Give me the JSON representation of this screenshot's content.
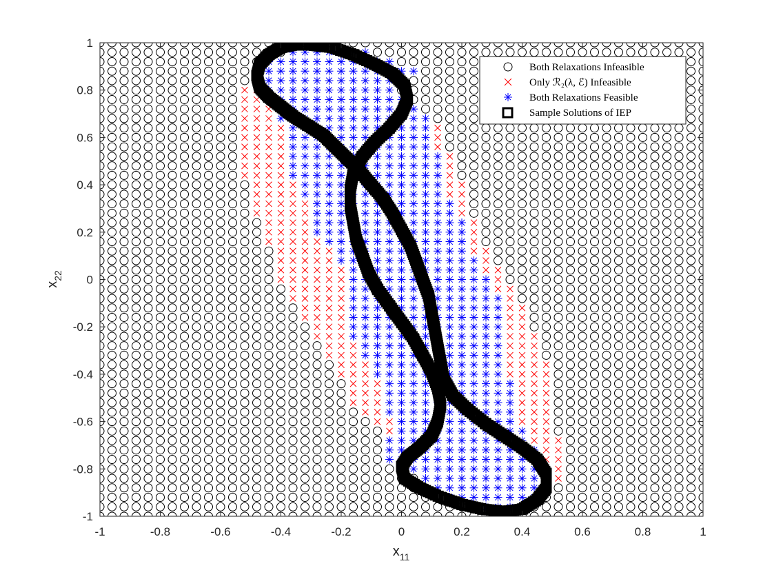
{
  "chart_data": {
    "type": "scatter",
    "title": "",
    "xlabel": {
      "base": "x",
      "sub": "11"
    },
    "ylabel": {
      "base": "x",
      "sub": "22"
    },
    "xlim": [
      -1,
      1
    ],
    "ylim": [
      -1,
      1
    ],
    "xticks": [
      "-1",
      "-0.8",
      "-0.6",
      "-0.4",
      "-0.2",
      "0",
      "0.2",
      "0.4",
      "0.6",
      "0.8",
      "1"
    ],
    "yticks": [
      "-1",
      "-0.8",
      "-0.6",
      "-0.4",
      "-0.2",
      "0",
      "0.2",
      "0.4",
      "0.6",
      "0.8",
      "1"
    ],
    "grid": false,
    "grid_spacing": 0.04,
    "legend_position": "top-right",
    "series": [
      {
        "name": "Both Relaxations Infeasible",
        "marker": "circle",
        "color": "#000000"
      },
      {
        "name": "Only ℛ₂(λ, ℰ) Infeasible",
        "marker": "x",
        "color": "#ff0000"
      },
      {
        "name": "Both Relaxations Feasible",
        "marker": "asterisk",
        "color": "#0000ff"
      },
      {
        "name": "Sample Solutions of IEP",
        "marker": "square",
        "color": "#000000"
      }
    ],
    "feasible_x11_range_by_x22": [
      [
        0.96,
        -0.36,
        -0.12
      ],
      [
        0.92,
        -0.44,
        -0.04
      ],
      [
        0.88,
        -0.44,
        0.04
      ],
      [
        0.84,
        -0.44,
        0.0
      ],
      [
        0.8,
        -0.44,
        -0.04
      ],
      [
        0.76,
        -0.44,
        0.0
      ],
      [
        0.72,
        -0.4,
        0.04
      ],
      [
        0.68,
        -0.4,
        0.08
      ],
      [
        0.64,
        -0.36,
        0.08
      ],
      [
        0.6,
        -0.36,
        0.08
      ],
      [
        0.56,
        -0.36,
        0.08
      ],
      [
        0.52,
        -0.36,
        0.12
      ],
      [
        0.48,
        -0.36,
        0.12
      ],
      [
        0.44,
        -0.36,
        0.12
      ],
      [
        0.4,
        -0.32,
        0.12
      ],
      [
        0.36,
        -0.32,
        0.12
      ],
      [
        0.32,
        -0.28,
        0.16
      ],
      [
        0.28,
        -0.28,
        0.16
      ],
      [
        0.24,
        -0.28,
        0.2
      ],
      [
        0.2,
        -0.28,
        0.2
      ],
      [
        0.16,
        -0.24,
        0.2
      ],
      [
        0.12,
        -0.2,
        0.2
      ],
      [
        0.08,
        -0.2,
        0.24
      ],
      [
        0.04,
        -0.16,
        0.24
      ],
      [
        0.0,
        -0.16,
        0.28
      ],
      [
        -0.04,
        -0.16,
        0.28
      ],
      [
        -0.08,
        -0.16,
        0.32
      ],
      [
        -0.12,
        -0.16,
        0.32
      ],
      [
        -0.16,
        -0.16,
        0.32
      ],
      [
        -0.2,
        -0.16,
        0.32
      ],
      [
        -0.24,
        -0.16,
        0.32
      ],
      [
        -0.28,
        -0.12,
        0.32
      ],
      [
        -0.32,
        -0.12,
        0.32
      ],
      [
        -0.36,
        -0.08,
        0.32
      ],
      [
        -0.4,
        -0.08,
        0.32
      ],
      [
        -0.44,
        -0.04,
        0.36
      ],
      [
        -0.48,
        -0.04,
        0.36
      ],
      [
        -0.52,
        -0.04,
        0.36
      ],
      [
        -0.56,
        -0.04,
        0.36
      ],
      [
        -0.6,
        0.0,
        0.36
      ],
      [
        -0.64,
        0.0,
        0.4
      ],
      [
        -0.68,
        -0.04,
        0.4
      ],
      [
        -0.72,
        -0.04,
        0.44
      ],
      [
        -0.76,
        -0.04,
        0.44
      ],
      [
        -0.8,
        0.0,
        0.44
      ],
      [
        -0.84,
        0.08,
        0.44
      ],
      [
        -0.88,
        0.12,
        0.44
      ],
      [
        -0.92,
        0.16,
        0.44
      ],
      [
        -0.96,
        0.24,
        0.4
      ]
    ],
    "red_x11_range_by_x22": [
      [
        0.8,
        -0.52,
        -0.48
      ],
      [
        0.76,
        -0.52,
        -0.48
      ],
      [
        0.72,
        -0.52,
        -0.44
      ],
      [
        0.68,
        -0.52,
        -0.44
      ],
      [
        0.64,
        -0.52,
        -0.4
      ],
      [
        0.6,
        -0.52,
        -0.4
      ],
      [
        0.56,
        -0.52,
        -0.4
      ],
      [
        0.52,
        -0.52,
        -0.4
      ],
      [
        0.48,
        -0.52,
        -0.4
      ],
      [
        0.44,
        -0.52,
        -0.4
      ],
      [
        0.4,
        -0.48,
        -0.36
      ],
      [
        0.36,
        -0.48,
        -0.36
      ],
      [
        0.32,
        -0.48,
        -0.32
      ],
      [
        0.28,
        -0.48,
        -0.32
      ],
      [
        0.24,
        -0.44,
        -0.32
      ],
      [
        0.2,
        -0.44,
        -0.32
      ],
      [
        0.16,
        -0.44,
        -0.28
      ],
      [
        0.12,
        -0.4,
        -0.24
      ],
      [
        0.08,
        -0.4,
        -0.24
      ],
      [
        0.04,
        -0.4,
        -0.2
      ],
      [
        0.0,
        -0.4,
        -0.2
      ],
      [
        -0.04,
        -0.36,
        -0.2
      ],
      [
        -0.08,
        -0.36,
        -0.2
      ],
      [
        -0.12,
        -0.32,
        -0.2
      ],
      [
        -0.16,
        -0.32,
        -0.2
      ],
      [
        -0.2,
        -0.28,
        -0.2
      ],
      [
        -0.24,
        -0.28,
        -0.2
      ],
      [
        -0.28,
        -0.24,
        -0.16
      ],
      [
        -0.32,
        -0.24,
        -0.16
      ],
      [
        -0.36,
        -0.2,
        -0.12
      ],
      [
        -0.4,
        -0.2,
        -0.12
      ],
      [
        -0.44,
        -0.16,
        -0.08
      ],
      [
        -0.48,
        -0.16,
        -0.08
      ],
      [
        -0.52,
        -0.16,
        -0.08
      ],
      [
        -0.56,
        -0.12,
        -0.08
      ],
      [
        -0.6,
        -0.08,
        -0.04
      ],
      [
        -0.64,
        -0.04,
        -0.04
      ]
    ],
    "red_right_x11_range_by_x22": [
      [
        0.68,
        0.08,
        0.08
      ],
      [
        0.64,
        0.12,
        0.12
      ],
      [
        0.6,
        0.12,
        0.12
      ],
      [
        0.56,
        0.12,
        0.12
      ],
      [
        0.52,
        0.16,
        0.16
      ],
      [
        0.48,
        0.16,
        0.16
      ],
      [
        0.44,
        0.16,
        0.16
      ],
      [
        0.4,
        0.16,
        0.2
      ],
      [
        0.36,
        0.16,
        0.2
      ],
      [
        0.32,
        0.2,
        0.2
      ],
      [
        0.28,
        0.2,
        0.2
      ],
      [
        0.24,
        0.24,
        0.24
      ],
      [
        0.2,
        0.24,
        0.24
      ],
      [
        0.16,
        0.24,
        0.24
      ],
      [
        0.12,
        0.24,
        0.28
      ],
      [
        0.08,
        0.28,
        0.28
      ],
      [
        0.04,
        0.28,
        0.32
      ],
      [
        0.0,
        0.32,
        0.32
      ],
      [
        -0.04,
        0.32,
        0.36
      ],
      [
        -0.08,
        0.36,
        0.36
      ],
      [
        -0.12,
        0.36,
        0.4
      ],
      [
        -0.16,
        0.36,
        0.4
      ],
      [
        -0.2,
        0.36,
        0.4
      ],
      [
        -0.24,
        0.36,
        0.44
      ],
      [
        -0.28,
        0.36,
        0.44
      ],
      [
        -0.32,
        0.36,
        0.44
      ],
      [
        -0.36,
        0.36,
        0.48
      ],
      [
        -0.4,
        0.36,
        0.48
      ],
      [
        -0.44,
        0.4,
        0.48
      ],
      [
        -0.48,
        0.4,
        0.48
      ],
      [
        -0.52,
        0.4,
        0.48
      ],
      [
        -0.56,
        0.4,
        0.48
      ],
      [
        -0.6,
        0.4,
        0.48
      ],
      [
        -0.64,
        0.44,
        0.48
      ],
      [
        -0.68,
        0.44,
        0.52
      ],
      [
        -0.72,
        0.48,
        0.52
      ],
      [
        -0.76,
        0.48,
        0.52
      ],
      [
        -0.8,
        0.48,
        0.52
      ],
      [
        -0.84,
        0.48,
        0.52
      ]
    ],
    "curve_points": [
      [
        -0.36,
        0.99
      ],
      [
        -0.4,
        0.98
      ],
      [
        -0.44,
        0.95
      ],
      [
        -0.47,
        0.91
      ],
      [
        -0.48,
        0.86
      ],
      [
        -0.47,
        0.81
      ],
      [
        -0.44,
        0.77
      ],
      [
        -0.4,
        0.73
      ],
      [
        -0.36,
        0.69
      ],
      [
        -0.31,
        0.65
      ],
      [
        -0.26,
        0.61
      ],
      [
        -0.22,
        0.56
      ],
      [
        -0.18,
        0.51
      ],
      [
        -0.14,
        0.46
      ],
      [
        -0.1,
        0.4
      ],
      [
        -0.06,
        0.34
      ],
      [
        -0.03,
        0.28
      ],
      [
        0.0,
        0.21
      ],
      [
        0.03,
        0.14
      ],
      [
        0.05,
        0.07
      ],
      [
        0.07,
        0.0
      ],
      [
        0.09,
        -0.07
      ],
      [
        0.1,
        -0.14
      ],
      [
        0.11,
        -0.21
      ],
      [
        0.12,
        -0.28
      ],
      [
        0.13,
        -0.35
      ],
      [
        0.14,
        -0.42
      ],
      [
        0.17,
        -0.49
      ],
      [
        0.22,
        -0.55
      ],
      [
        0.28,
        -0.61
      ],
      [
        0.34,
        -0.66
      ],
      [
        0.4,
        -0.71
      ],
      [
        0.45,
        -0.76
      ],
      [
        0.48,
        -0.82
      ],
      [
        0.48,
        -0.88
      ],
      [
        0.45,
        -0.93
      ],
      [
        0.4,
        -0.97
      ],
      [
        0.34,
        -0.98
      ],
      [
        0.27,
        -0.97
      ],
      [
        0.2,
        -0.95
      ],
      [
        0.13,
        -0.92
      ],
      [
        0.06,
        -0.88
      ],
      [
        0.01,
        -0.84
      ],
      [
        0.0,
        -0.79
      ],
      [
        0.02,
        -0.75
      ],
      [
        0.06,
        -0.71
      ],
      [
        0.1,
        -0.66
      ],
      [
        0.12,
        -0.6
      ],
      [
        0.13,
        -0.53
      ],
      [
        0.12,
        -0.46
      ],
      [
        0.1,
        -0.39
      ],
      [
        0.07,
        -0.32
      ],
      [
        0.04,
        -0.25
      ],
      [
        0.0,
        -0.18
      ],
      [
        -0.04,
        -0.11
      ],
      [
        -0.08,
        -0.04
      ],
      [
        -0.11,
        0.03
      ],
      [
        -0.13,
        0.1
      ],
      [
        -0.15,
        0.17
      ],
      [
        -0.16,
        0.24
      ],
      [
        -0.17,
        0.31
      ],
      [
        -0.17,
        0.38
      ],
      [
        -0.16,
        0.45
      ],
      [
        -0.13,
        0.52
      ],
      [
        -0.09,
        0.58
      ],
      [
        -0.04,
        0.64
      ],
      [
        0.0,
        0.7
      ],
      [
        0.02,
        0.76
      ],
      [
        0.01,
        0.82
      ],
      [
        -0.03,
        0.87
      ],
      [
        -0.09,
        0.91
      ],
      [
        -0.16,
        0.95
      ],
      [
        -0.23,
        0.98
      ],
      [
        -0.3,
        0.99
      ],
      [
        -0.36,
        0.99
      ]
    ]
  }
}
